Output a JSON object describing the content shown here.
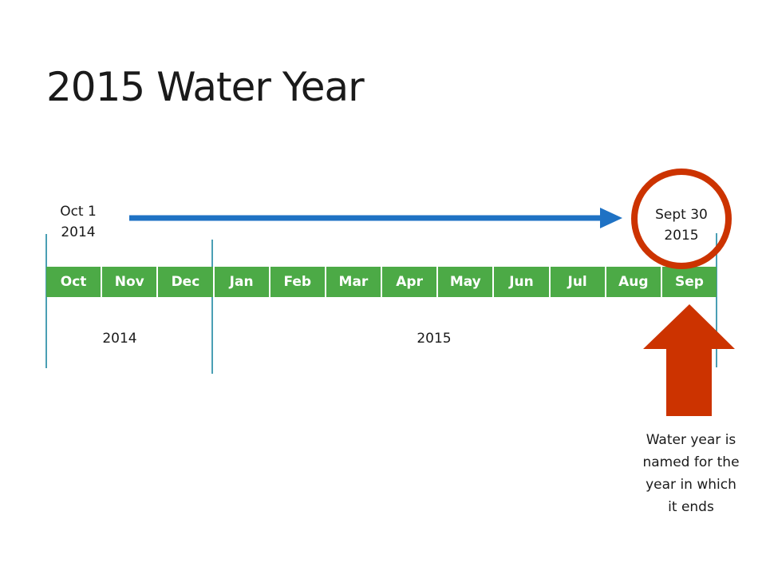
{
  "title": "2015 Water Year",
  "months": [
    "Oct",
    "Nov",
    "Dec",
    "Jan",
    "Feb",
    "Mar",
    "Apr",
    "May",
    "Jun",
    "Jul",
    "Aug",
    "Sep"
  ],
  "start": {
    "line1": "Oct 1",
    "line2": "2014"
  },
  "end": {
    "line1": "Sept 30",
    "line2": "2015"
  },
  "year_labels": {
    "first": "2014",
    "second": "2015"
  },
  "note": [
    "Water year is",
    "named for the",
    "year in which",
    "it ends"
  ],
  "colors": {
    "month_bar": "#4caa46",
    "arrow_blue": "#1f72c4",
    "highlight_red": "#cc3300",
    "divider": "#4a9fb4"
  }
}
